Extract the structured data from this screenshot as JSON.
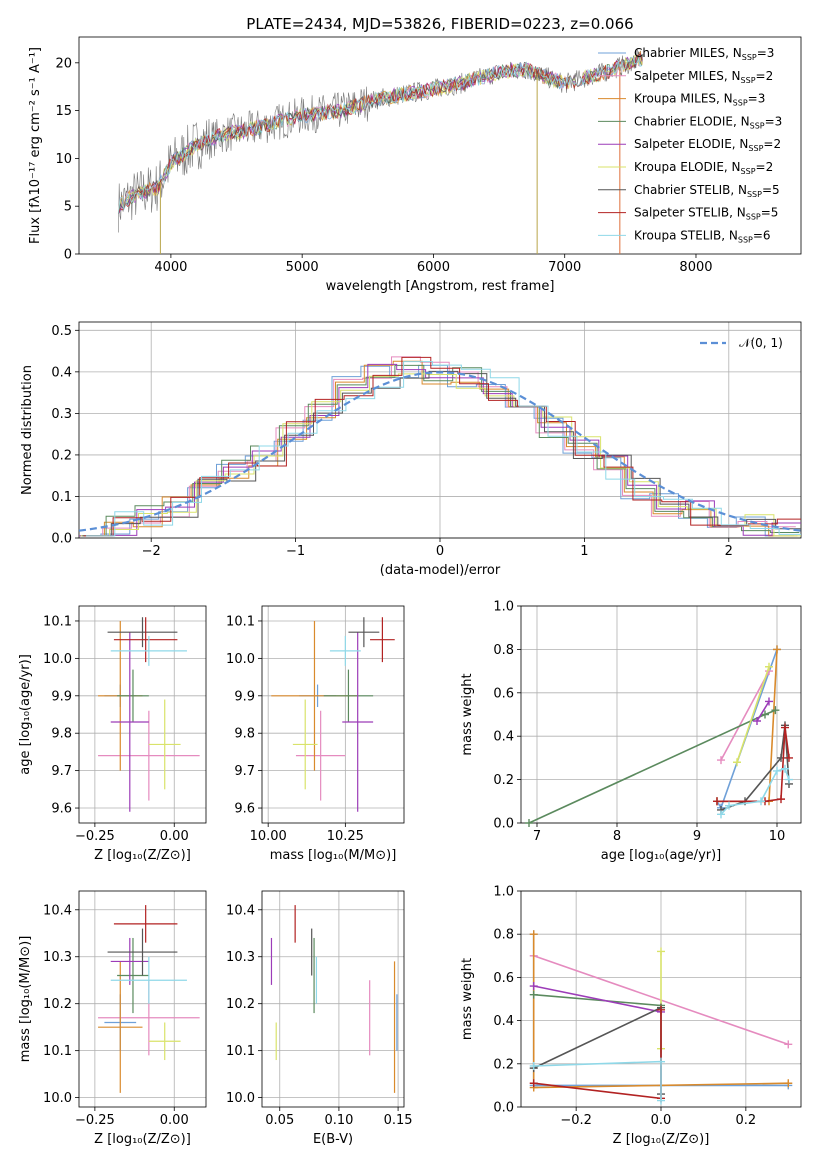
{
  "chart_data": [
    {
      "type": "line",
      "title": "PLATE=2434, MJD=53826, FIBERID=0223, z=0.066",
      "xlabel": "wavelength [Angstrom, rest frame]",
      "ylabel": "Flux [fλ10⁻¹⁷ erg cm⁻² s⁻¹ A⁻¹]",
      "xlim": [
        3300,
        8800
      ],
      "ylim": [
        0,
        22.7
      ],
      "xticks": [
        4000,
        5000,
        6000,
        7000,
        8000
      ],
      "yticks": [
        0,
        5,
        10,
        15,
        20
      ],
      "legend_position": "top-right",
      "legend": [
        {
          "label": "Chabrier MILES, N_SSP=3",
          "base": "Chabrier MILES, N",
          "sub": "SSP",
          "tail": "=3",
          "color": "#6fa0d8"
        },
        {
          "label": "Salpeter MILES, N_SSP=2",
          "base": "Salpeter MILES, N",
          "sub": "SSP",
          "tail": "=2",
          "color": "#e58bbf"
        },
        {
          "label": "Kroupa MILES, N_SSP=3",
          "base": "Kroupa MILES, N",
          "sub": "SSP",
          "tail": "=3",
          "color": "#d98a2c"
        },
        {
          "label": "Chabrier ELODIE, N_SSP=3",
          "base": "Chabrier ELODIE, N",
          "sub": "SSP",
          "tail": "=3",
          "color": "#5b8a5e"
        },
        {
          "label": "Salpeter ELODIE, N_SSP=2",
          "base": "Salpeter ELODIE, N",
          "sub": "SSP",
          "tail": "=2",
          "color": "#9c3cb8"
        },
        {
          "label": "Kroupa ELODIE, N_SSP=2",
          "base": "Kroupa ELODIE, N",
          "sub": "SSP",
          "tail": "=2",
          "color": "#d9e36a"
        },
        {
          "label": "Chabrier STELIB, N_SSP=5",
          "base": "Chabrier STELIB, N",
          "sub": "SSP",
          "tail": "=5",
          "color": "#555555"
        },
        {
          "label": "Salpeter STELIB, N_SSP=5",
          "base": "Salpeter STELIB, N",
          "sub": "SSP",
          "tail": "=5",
          "color": "#b22222"
        },
        {
          "label": "Kroupa STELIB, N_SSP=6",
          "base": "Kroupa STELIB, N",
          "sub": "SSP",
          "tail": "=6",
          "color": "#8fd8e8"
        }
      ],
      "series_note_data": "flux continuum approx: 3600:5, 4000:9, 4300:12, 5000:14.5, 6000:17.5, 6500:19, 7000:18, 7600:20.5"
    },
    {
      "type": "bar",
      "xlabel": "(data-model)/error",
      "ylabel": "Normed distribution",
      "xlim": [
        -2.5,
        2.5
      ],
      "ylim": [
        0,
        0.52
      ],
      "xticks": [
        -2,
        -1,
        0,
        1,
        2
      ],
      "yticks": [
        0.0,
        0.1,
        0.2,
        0.3,
        0.4,
        0.5
      ],
      "grid": true,
      "legend_position": "top-right",
      "reference_curve": {
        "label": "𝒩(0, 1)",
        "color": "#5b8fd6",
        "style": "dashed"
      },
      "bin_width": 0.2,
      "histogram_centers": [
        -2.4,
        -2.2,
        -2.0,
        -1.8,
        -1.6,
        -1.4,
        -1.2,
        -1.0,
        -0.8,
        -0.6,
        -0.4,
        -0.2,
        0.0,
        0.2,
        0.4,
        0.6,
        0.8,
        1.0,
        1.2,
        1.4,
        1.6,
        1.8,
        2.0,
        2.2,
        2.4
      ],
      "histogram_envelope": [
        0.02,
        0.035,
        0.05,
        0.08,
        0.12,
        0.16,
        0.2,
        0.26,
        0.31,
        0.36,
        0.39,
        0.41,
        0.4,
        0.39,
        0.36,
        0.32,
        0.27,
        0.22,
        0.17,
        0.12,
        0.08,
        0.06,
        0.04,
        0.03,
        0.02
      ]
    },
    {
      "type": "scatter",
      "xlabel": "Z [log₁₀(Z/Z⊙)]",
      "ylabel": "age  [log₁₀(age/yr)]",
      "xlim": [
        -0.3,
        0.1
      ],
      "ylim": [
        9.56,
        10.14
      ],
      "xticks": [
        -0.25,
        0.0
      ],
      "xtick_labels": [
        "−0.25",
        "0.00"
      ],
      "yticks": [
        9.6,
        9.7,
        9.8,
        9.9,
        10.0,
        10.1
      ],
      "points": [
        {
          "x": -0.17,
          "xerr": 0.05,
          "y": 9.9,
          "yerr": 0.03,
          "color": "#6fa0d8"
        },
        {
          "x": -0.08,
          "xerr": 0.16,
          "y": 9.74,
          "yerr": 0.12,
          "color": "#e58bbf"
        },
        {
          "x": -0.17,
          "xerr": 0.07,
          "y": 9.9,
          "yerr": 0.2,
          "color": "#d98a2c"
        },
        {
          "x": -0.13,
          "xerr": 0.05,
          "y": 9.9,
          "yerr": 0.07,
          "color": "#5b8a5e"
        },
        {
          "x": -0.14,
          "xerr": 0.06,
          "y": 9.83,
          "yerr": 0.24,
          "color": "#9c3cb8"
        },
        {
          "x": -0.03,
          "xerr": 0.05,
          "y": 9.77,
          "yerr": 0.12,
          "color": "#d9e36a"
        },
        {
          "x": -0.1,
          "xerr": 0.11,
          "y": 10.07,
          "yerr": 0.04,
          "color": "#555555"
        },
        {
          "x": -0.09,
          "xerr": 0.1,
          "y": 10.05,
          "yerr": 0.06,
          "color": "#b22222"
        },
        {
          "x": -0.08,
          "xerr": 0.12,
          "y": 10.02,
          "yerr": 0.04,
          "color": "#8fd8e8"
        }
      ]
    },
    {
      "type": "scatter",
      "xlabel": "mass [log₁₀(M/M⊙)]",
      "ylabel": "",
      "xlim": [
        9.98,
        10.44
      ],
      "ylim": [
        9.56,
        10.14
      ],
      "xticks": [
        10.0,
        10.25
      ],
      "xtick_labels": [
        "10.00",
        "10.25"
      ],
      "yticks": [
        9.6,
        9.7,
        9.8,
        9.9,
        10.0,
        10.1
      ],
      "points": [
        {
          "x": 10.16,
          "xerr": 0.06,
          "y": 9.9,
          "yerr": 0.03,
          "color": "#6fa0d8"
        },
        {
          "x": 10.17,
          "xerr": 0.08,
          "y": 9.74,
          "yerr": 0.12,
          "color": "#e58bbf"
        },
        {
          "x": 10.15,
          "xerr": 0.14,
          "y": 9.9,
          "yerr": 0.2,
          "color": "#d98a2c"
        },
        {
          "x": 10.26,
          "xerr": 0.08,
          "y": 9.9,
          "yerr": 0.07,
          "color": "#5b8a5e"
        },
        {
          "x": 10.29,
          "xerr": 0.05,
          "y": 9.83,
          "yerr": 0.24,
          "color": "#9c3cb8"
        },
        {
          "x": 10.12,
          "xerr": 0.04,
          "y": 9.77,
          "yerr": 0.12,
          "color": "#d9e36a"
        },
        {
          "x": 10.31,
          "xerr": 0.05,
          "y": 10.07,
          "yerr": 0.04,
          "color": "#555555"
        },
        {
          "x": 10.37,
          "xerr": 0.04,
          "y": 10.05,
          "yerr": 0.06,
          "color": "#b22222"
        },
        {
          "x": 10.25,
          "xerr": 0.05,
          "y": 10.02,
          "yerr": 0.04,
          "color": "#8fd8e8"
        }
      ]
    },
    {
      "type": "line",
      "xlabel": "age  [log₁₀(age/yr)]",
      "ylabel": "mass weight",
      "xlim": [
        6.8,
        10.3
      ],
      "ylim": [
        0,
        1.0
      ],
      "xticks": [
        7,
        8,
        9,
        10
      ],
      "yticks": [
        0.0,
        0.2,
        0.4,
        0.6,
        0.8,
        1.0
      ],
      "series": [
        {
          "color": "#6fa0d8",
          "points": [
            [
              9.25,
              0.1
            ],
            [
              9.3,
              0.07
            ],
            [
              10.0,
              0.8
            ]
          ]
        },
        {
          "color": "#e58bbf",
          "points": [
            [
              9.3,
              0.29
            ],
            [
              9.9,
              0.7
            ]
          ]
        },
        {
          "color": "#d98a2c",
          "points": [
            [
              9.25,
              0.1
            ],
            [
              9.9,
              0.1
            ],
            [
              10.0,
              0.8
            ]
          ]
        },
        {
          "color": "#5b8a5e",
          "points": [
            [
              6.9,
              0.0
            ],
            [
              9.85,
              0.5
            ],
            [
              9.98,
              0.52
            ]
          ]
        },
        {
          "color": "#9c3cb8",
          "points": [
            [
              9.75,
              0.47
            ],
            [
              9.9,
              0.56
            ]
          ]
        },
        {
          "color": "#d9e36a",
          "points": [
            [
              9.5,
              0.28
            ],
            [
              9.9,
              0.72
            ]
          ]
        },
        {
          "color": "#555555",
          "points": [
            [
              9.3,
              0.06
            ],
            [
              9.6,
              0.1
            ],
            [
              10.05,
              0.3
            ],
            [
              10.1,
              0.45
            ],
            [
              10.15,
              0.18
            ]
          ]
        },
        {
          "color": "#b22222",
          "points": [
            [
              9.25,
              0.1
            ],
            [
              9.85,
              0.1
            ],
            [
              10.05,
              0.11
            ],
            [
              10.1,
              0.44
            ],
            [
              10.15,
              0.3
            ]
          ]
        },
        {
          "color": "#8fd8e8",
          "points": [
            [
              9.3,
              0.04
            ],
            [
              9.4,
              0.08
            ],
            [
              9.8,
              0.1
            ],
            [
              10.0,
              0.24
            ],
            [
              10.1,
              0.25
            ],
            [
              10.15,
              0.2
            ]
          ]
        }
      ]
    },
    {
      "type": "scatter",
      "xlabel": "Z [log₁₀(Z/Z⊙)]",
      "ylabel": "mass [log₁₀(M/M⊙)]",
      "xlim": [
        -0.3,
        0.1
      ],
      "ylim": [
        9.98,
        10.44
      ],
      "xticks": [
        -0.25,
        0.0
      ],
      "xtick_labels": [
        "−0.25",
        "0.00"
      ],
      "yticks": [
        10.0,
        10.1,
        10.2,
        10.3,
        10.4
      ],
      "points": [
        {
          "x": -0.17,
          "xerr": 0.05,
          "y": 10.16,
          "yerr": 0.06,
          "color": "#6fa0d8"
        },
        {
          "x": -0.08,
          "xerr": 0.16,
          "y": 10.17,
          "yerr": 0.08,
          "color": "#e58bbf"
        },
        {
          "x": -0.17,
          "xerr": 0.07,
          "y": 10.15,
          "yerr": 0.14,
          "color": "#d98a2c"
        },
        {
          "x": -0.13,
          "xerr": 0.05,
          "y": 10.26,
          "yerr": 0.08,
          "color": "#5b8a5e"
        },
        {
          "x": -0.14,
          "xerr": 0.06,
          "y": 10.29,
          "yerr": 0.05,
          "color": "#9c3cb8"
        },
        {
          "x": -0.03,
          "xerr": 0.05,
          "y": 10.12,
          "yerr": 0.04,
          "color": "#d9e36a"
        },
        {
          "x": -0.1,
          "xerr": 0.11,
          "y": 10.31,
          "yerr": 0.05,
          "color": "#555555"
        },
        {
          "x": -0.09,
          "xerr": 0.1,
          "y": 10.37,
          "yerr": 0.04,
          "color": "#b22222"
        },
        {
          "x": -0.08,
          "xerr": 0.12,
          "y": 10.25,
          "yerr": 0.05,
          "color": "#8fd8e8"
        }
      ]
    },
    {
      "type": "scatter",
      "xlabel": "E(B-V)",
      "ylabel": "",
      "xlim": [
        0.035,
        0.155
      ],
      "ylim": [
        9.98,
        10.44
      ],
      "xticks": [
        0.05,
        0.1,
        0.15
      ],
      "xtick_labels": [
        "0.05",
        "0.10",
        "0.15"
      ],
      "yticks": [
        10.0,
        10.1,
        10.2,
        10.3,
        10.4
      ],
      "points": [
        {
          "x": 0.149,
          "y": 10.16,
          "yerr": 0.06,
          "color": "#6fa0d8"
        },
        {
          "x": 0.126,
          "y": 10.17,
          "yerr": 0.08,
          "color": "#e58bbf"
        },
        {
          "x": 0.147,
          "y": 10.15,
          "yerr": 0.14,
          "color": "#d98a2c"
        },
        {
          "x": 0.079,
          "y": 10.26,
          "yerr": 0.08,
          "color": "#5b8a5e"
        },
        {
          "x": 0.043,
          "y": 10.29,
          "yerr": 0.05,
          "color": "#9c3cb8"
        },
        {
          "x": 0.047,
          "y": 10.12,
          "yerr": 0.04,
          "color": "#d9e36a"
        },
        {
          "x": 0.077,
          "y": 10.31,
          "yerr": 0.05,
          "color": "#555555"
        },
        {
          "x": 0.063,
          "y": 10.37,
          "yerr": 0.04,
          "color": "#b22222"
        },
        {
          "x": 0.081,
          "y": 10.25,
          "yerr": 0.05,
          "color": "#8fd8e8"
        }
      ]
    },
    {
      "type": "line",
      "xlabel": "Z [log₁₀(Z/Z⊙)]",
      "ylabel": "mass weight",
      "xlim": [
        -0.33,
        0.33
      ],
      "ylim": [
        0,
        1.0
      ],
      "xticks": [
        -0.2,
        0.0,
        0.2
      ],
      "xtick_labels": [
        "−0.2",
        "0.0",
        "0.2"
      ],
      "yticks": [
        0.0,
        0.2,
        0.4,
        0.6,
        0.8,
        1.0
      ],
      "series": [
        {
          "color": "#6fa0d8",
          "points": [
            [
              -0.3,
              0.8
            ],
            [
              -0.3,
              0.1
            ],
            [
              0.0,
              0.1
            ],
            [
              0.3,
              0.1
            ]
          ]
        },
        {
          "color": "#e58bbf",
          "points": [
            [
              -0.3,
              0.7
            ],
            [
              0.3,
              0.29
            ]
          ]
        },
        {
          "color": "#d98a2c",
          "points": [
            [
              -0.3,
              0.8
            ],
            [
              -0.3,
              0.09
            ],
            [
              0.3,
              0.11
            ]
          ]
        },
        {
          "color": "#5b8a5e",
          "points": [
            [
              -0.3,
              0.52
            ],
            [
              0.0,
              0.47
            ]
          ]
        },
        {
          "color": "#9c3cb8",
          "points": [
            [
              -0.3,
              0.56
            ],
            [
              0.0,
              0.44
            ]
          ]
        },
        {
          "color": "#d9e36a",
          "points": [
            [
              0.0,
              0.72
            ],
            [
              0.0,
              0.27
            ]
          ]
        },
        {
          "color": "#555555",
          "points": [
            [
              -0.3,
              0.18
            ],
            [
              0.0,
              0.46
            ],
            [
              0.0,
              0.06
            ]
          ]
        },
        {
          "color": "#b22222",
          "points": [
            [
              -0.3,
              0.11
            ],
            [
              0.0,
              0.04
            ],
            [
              0.0,
              0.45
            ]
          ]
        },
        {
          "color": "#8fd8e8",
          "points": [
            [
              -0.3,
              0.19
            ],
            [
              0.0,
              0.21
            ],
            [
              0.0,
              0.03
            ]
          ]
        }
      ]
    }
  ]
}
